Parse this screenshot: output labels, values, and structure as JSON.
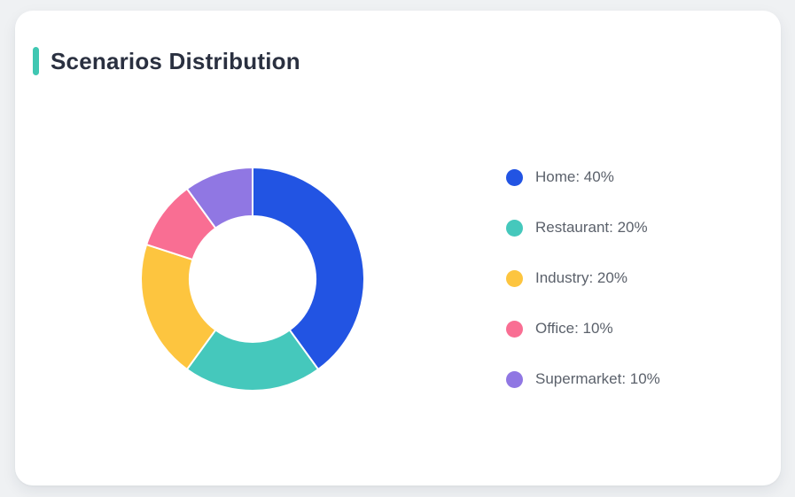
{
  "card": {
    "title": "Scenarios Distribution"
  },
  "colors": {
    "accent_bar": "#3fc7b2",
    "title_text": "#2a3040",
    "legend_text": "#5b616b",
    "card_bg": "#ffffff",
    "page_bg": "#eff1f3",
    "segment_gap": "#ffffff"
  },
  "chart_data": {
    "type": "pie",
    "title": "Scenarios Distribution",
    "donut": true,
    "inner_radius_ratio": 0.565,
    "start_angle_deg": 0,
    "direction": "clockwise",
    "legend_position": "right",
    "unit": "%",
    "labels": [
      "Home",
      "Restaurant",
      "Industry",
      "Office",
      "Supermarket"
    ],
    "values": [
      40,
      20,
      20,
      10,
      10
    ],
    "colors": [
      "#2254e3",
      "#45c8bc",
      "#fdc53f",
      "#f96e93",
      "#9077e3"
    ],
    "legend": [
      "Home: 40%",
      "Restaurant: 20%",
      "Industry: 20%",
      "Office: 10%",
      "Supermarket: 10%"
    ]
  }
}
